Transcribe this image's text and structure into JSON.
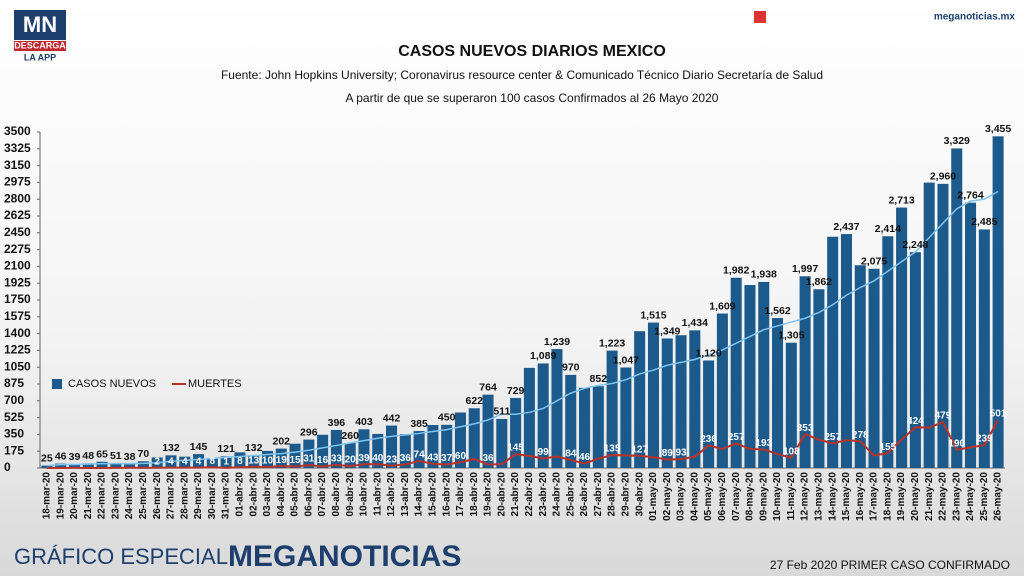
{
  "brand": {
    "logo": "MN",
    "logo_sub": "DESCARGA",
    "logo_app": "LA APP",
    "site": "meganoticias.mx"
  },
  "footer": {
    "left": "GRÁFICO ESPECIAL",
    "brand": "MEGANOTICIAS",
    "right": "27 Feb 2020 PRIMER CASO CONFIRMADO"
  },
  "chart_data": {
    "type": "bar",
    "title": "CASOS NUEVOS DIARIOS MEXICO",
    "subtitle": "Fuente: John Hopkins University; Coronavirus resource center & Comunicado Técnico Diario Secretaría de Salud",
    "subtitle2": "A partir de que se superaron 100 casos Confirmados al 26 Mayo 2020",
    "legend": "left",
    "categories": [
      "18-mar-20",
      "19-mar-20",
      "20-mar-20",
      "21-mar-20",
      "22-mar-20",
      "23-mar-20",
      "24-mar-20",
      "25-mar-20",
      "26-mar-20",
      "27-mar-20",
      "28-mar-20",
      "29-mar-20",
      "30-mar-20",
      "31-mar-20",
      "01-abr-20",
      "02-abr-20",
      "03-abr-20",
      "04-abr-20",
      "05-abr-20",
      "06-abr-20",
      "07-abr-20",
      "08-abr-20",
      "09-abr-20",
      "10-abr-20",
      "11-abr-20",
      "12-abr-20",
      "13-abr-20",
      "14-abr-20",
      "15-abr-20",
      "16-abr-20",
      "17-abr-20",
      "18-abr-20",
      "19-abr-20",
      "20-abr-20",
      "21-abr-20",
      "22-abr-20",
      "23-abr-20",
      "24-abr-20",
      "25-abr-20",
      "26-abr-20",
      "27-abr-20",
      "28-abr-20",
      "29-abr-20",
      "30-abr-20",
      "01-may-20",
      "02-may-20",
      "03-may-20",
      "04-may-20",
      "05-may-20",
      "06-may-20",
      "07-may-20",
      "08-may-20",
      "09-may-20",
      "10-may-20",
      "11-may-20",
      "12-may-20",
      "13-may-20",
      "14-may-20",
      "15-may-20",
      "16-may-20",
      "17-may-20",
      "18-may-20",
      "19-may-20",
      "20-may-20",
      "21-may-20",
      "22-may-20",
      "23-may-20",
      "24-may-20",
      "25-may-20",
      "26-may-20"
    ],
    "series": [
      {
        "name": "CASOS NUEVOS",
        "color": "#1d5a8c",
        "kind": "bar",
        "values": [
          25,
          46,
          39,
          48,
          65,
          51,
          38,
          70,
          110,
          132,
          118,
          145,
          101,
          121,
          163,
          132,
          178,
          202,
          253,
          296,
          346,
          396,
          260,
          403,
          355,
          442,
          353,
          385,
          448,
          450,
          578,
          622,
          764,
          511,
          729,
          1043,
          1089,
          1239,
          970,
          835,
          852,
          1223,
          1047,
          1425,
          1515,
          1349,
          1383,
          1434,
          1120,
          1609,
          1982,
          1906,
          1938,
          1562,
          1305,
          1997,
          1862,
          2409,
          2437,
          2112,
          2075,
          2414,
          2713,
          2248,
          2973,
          2960,
          3329,
          2764,
          2485,
          3455
        ],
        "value_labels": [
          "25",
          "46",
          "39",
          "48",
          "65",
          "51",
          "38",
          "70",
          null,
          "132",
          null,
          "145",
          null,
          "121",
          null,
          "132",
          null,
          "202",
          null,
          "296",
          null,
          "396",
          "260",
          "403",
          null,
          "442",
          null,
          "385",
          null,
          "450",
          null,
          "622",
          "764",
          "511",
          "729",
          null,
          "1,089",
          "1,239",
          "970",
          null,
          "852",
          "1,223",
          "1,047",
          null,
          "1,515",
          "1,349",
          null,
          "1,434",
          "1,120",
          "1,609",
          "1,982",
          null,
          "1,938",
          "1,562",
          "1,305",
          "1,997",
          "1,862",
          null,
          "2,437",
          null,
          "2,075",
          "2,414",
          "2,713",
          "2,248",
          null,
          "2,960",
          "3,329",
          "2,764",
          "2,485",
          "3,455"
        ]
      },
      {
        "name": "MUERTES",
        "color": "#b83228",
        "kind": "line",
        "values": [
          0,
          0,
          1,
          0,
          0,
          1,
          2,
          1,
          2,
          4,
          4,
          4,
          8,
          1,
          8,
          13,
          10,
          19,
          15,
          31,
          16,
          33,
          20,
          39,
          40,
          23,
          36,
          74,
          43,
          37,
          60,
          94,
          36,
          40,
          145,
          126,
          99,
          119,
          84,
          46,
          98,
          135,
          131,
          127,
          112,
          89,
          93,
          117,
          236,
          197,
          257,
          199,
          193,
          145,
          108,
          353,
          294,
          257,
          290,
          278,
          130,
          155,
          296,
          424,
          420,
          479,
          190,
          215,
          239,
          501
        ],
        "value_labels": [
          null,
          null,
          null,
          null,
          null,
          null,
          null,
          null,
          "2",
          "4",
          "4",
          "4",
          "8",
          "1",
          "8",
          "13",
          "10",
          "19",
          "15",
          "31",
          "16",
          "33",
          "20",
          "39",
          "40",
          "23",
          "36",
          "74",
          "43",
          "37",
          "60",
          null,
          "36",
          null,
          "145",
          null,
          "99",
          null,
          "84",
          "46",
          null,
          "135",
          null,
          "127",
          null,
          "89",
          "93",
          null,
          "236",
          null,
          "257",
          null,
          "193",
          null,
          "108",
          "353",
          null,
          "257",
          null,
          "278",
          null,
          "155",
          null,
          "424",
          null,
          "479",
          "190",
          null,
          "239",
          "501"
        ]
      }
    ],
    "trend": {
      "color": "#7fc4ee",
      "values": [
        25,
        35,
        37,
        40,
        45,
        46,
        45,
        48,
        55,
        70,
        80,
        90,
        100,
        110,
        120,
        130,
        140,
        150,
        165,
        185,
        210,
        235,
        260,
        285,
        310,
        330,
        345,
        360,
        380,
        400,
        430,
        460,
        500,
        560,
        560,
        580,
        620,
        700,
        780,
        830,
        860,
        880,
        920,
        980,
        1020,
        1070,
        1100,
        1130,
        1180,
        1230,
        1300,
        1370,
        1440,
        1480,
        1520,
        1560,
        1620,
        1700,
        1800,
        1880,
        1950,
        2050,
        2150,
        2250,
        2400,
        2550,
        2700,
        2780,
        2800,
        2880
      ]
    },
    "ylim": [
      0,
      3500
    ],
    "yticks": [
      0,
      175,
      350,
      525,
      700,
      875,
      1050,
      1225,
      1400,
      1575,
      1750,
      1925,
      2100,
      2275,
      2450,
      2625,
      2800,
      2975,
      3150,
      3325,
      3500
    ]
  }
}
